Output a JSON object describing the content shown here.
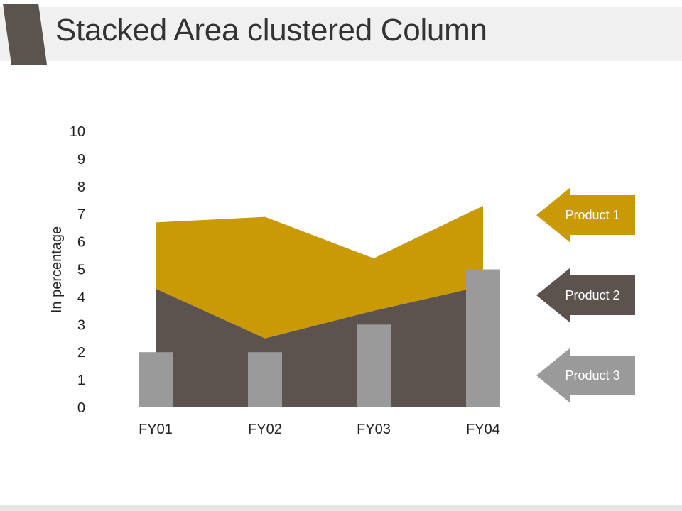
{
  "title": "Stacked Area clustered Column",
  "colors": {
    "accent": "#5b534e",
    "product1": "#c99a06",
    "product2": "#5c534e",
    "product3": "#9a9a9a",
    "axis_text": "#222222"
  },
  "chart_data": {
    "type": "area",
    "ylabel": "In percentage",
    "xlabel": "",
    "ylim": [
      0,
      10
    ],
    "yticks": [
      0,
      1,
      2,
      3,
      4,
      5,
      6,
      7,
      8,
      9,
      10
    ],
    "categories": [
      "FY01",
      "FY02",
      "FY03",
      "FY04"
    ],
    "series": [
      {
        "name": "Product 1",
        "type": "area",
        "stacked": true,
        "values": [
          2.4,
          4.4,
          1.9,
          2.9
        ]
      },
      {
        "name": "Product 2",
        "type": "area",
        "stacked": true,
        "values": [
          4.3,
          2.5,
          3.5,
          4.4
        ]
      },
      {
        "name": "Product 3",
        "type": "column",
        "values": [
          2,
          2,
          3,
          5
        ]
      }
    ],
    "legend_position": "right",
    "grid": false
  }
}
